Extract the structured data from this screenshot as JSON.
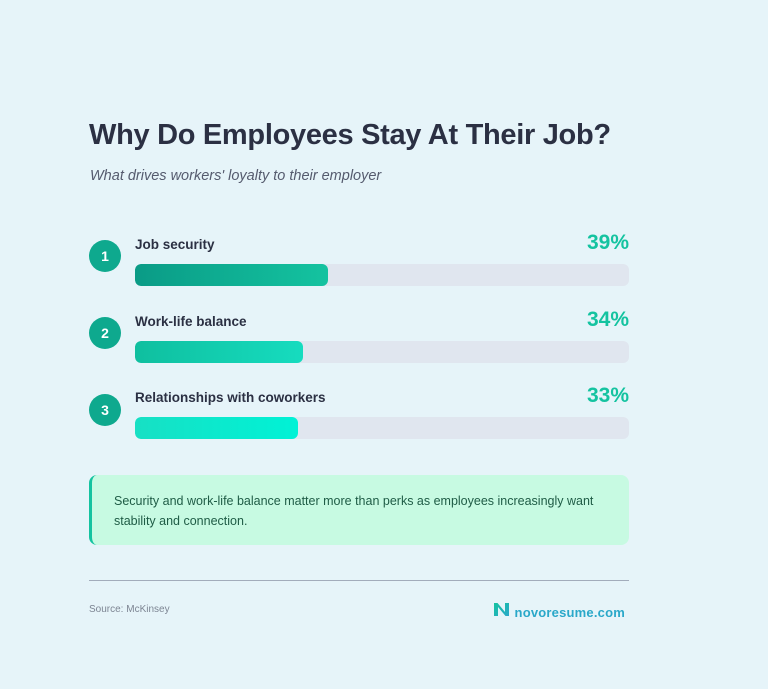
{
  "header": {
    "title": "Why Do Employees Stay At Their Job?",
    "subtitle": "What drives workers' loyalty to their employer"
  },
  "items": [
    {
      "rank": "1",
      "label": "Job security",
      "value_label": "39%",
      "value": 39,
      "bar_width": "39%",
      "gradient_from": "#0a9b86",
      "gradient_to": "#14c3a0"
    },
    {
      "rank": "2",
      "label": "Work-life balance",
      "value_label": "34%",
      "value": 34,
      "bar_width": "34%",
      "gradient_from": "#0fbf9f",
      "gradient_to": "#16dcbf"
    },
    {
      "rank": "3",
      "label": "Relationships with coworkers",
      "value_label": "33%",
      "value": 33,
      "bar_width": "33%",
      "gradient_from": "#17e0c4",
      "gradient_to": "#00f2d6"
    }
  ],
  "note": {
    "text": "Security and work-life balance matter more than perks as employees increasingly want stability and connection."
  },
  "footer": {
    "source": "Source: McKinsey",
    "brand": "novoresume.com"
  },
  "colors": {
    "background": "#e6f4f9",
    "accent": "#14c3a0",
    "badge": "#0ea98e",
    "track": "#e0e6ef",
    "note_bg": "#c7fae2",
    "brand": "#2aa8c9"
  },
  "chart_data": {
    "type": "bar",
    "orientation": "horizontal",
    "title": "Why Do Employees Stay At Their Job?",
    "subtitle": "What drives workers' loyalty to their employer",
    "categories": [
      "Job security",
      "Work-life balance",
      "Relationships with coworkers"
    ],
    "values": [
      39,
      34,
      33
    ],
    "value_labels": [
      "39%",
      "34%",
      "33%"
    ],
    "unit": "%",
    "xlim": [
      0,
      100
    ],
    "grid": false,
    "legend": null,
    "annotation": "Security and work-life balance matter more than perks as employees increasingly want stability and connection.",
    "source": "Source: McKinsey"
  }
}
